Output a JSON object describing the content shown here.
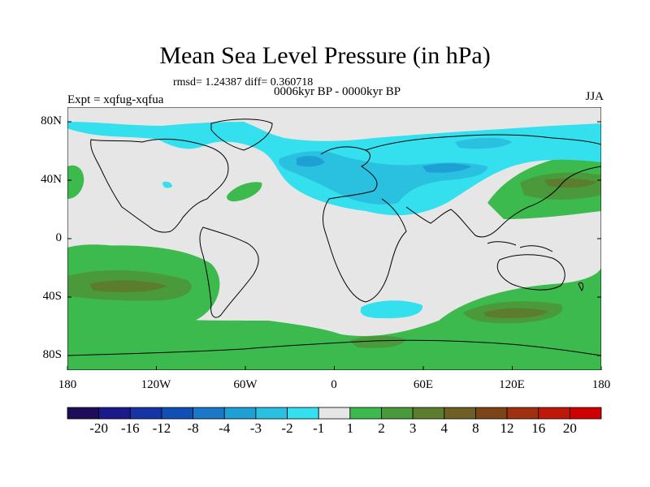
{
  "header": {
    "title": "Mean Sea Level Pressure (in hPa)",
    "stats": "rmsd= 1.24387 diff= 0.360718",
    "period": "0006kyr BP - 0000kyr BP",
    "experiment": "Expt = xqfug-xqfua",
    "season": "JJA"
  },
  "axes": {
    "lat_labels": [
      "80N",
      "40N",
      "0",
      "40S",
      "80S"
    ],
    "lon_labels": [
      "180",
      "120W",
      "60W",
      "0",
      "60E",
      "120E",
      "180"
    ]
  },
  "colorbar": {
    "labels": [
      "-20",
      "-16",
      "-12",
      "-8",
      "-4",
      "-3",
      "-2",
      "-1",
      "1",
      "2",
      "3",
      "4",
      "8",
      "12",
      "16",
      "20"
    ],
    "colors": [
      "#1e0c5a",
      "#1a1a8a",
      "#1535a5",
      "#1050b5",
      "#1a78c8",
      "#1fa0d5",
      "#2ac0e0",
      "#35e0ee",
      "#e6e6e6",
      "#3dba4d",
      "#4a9a3c",
      "#5d7d2e",
      "#6e5f24",
      "#7d4418",
      "#a03010",
      "#c01808",
      "#d00000"
    ]
  },
  "map_colors": {
    "neutral": "#e6e6e6",
    "pos_light": "#3dba4d",
    "pos_mid": "#4a9a3c",
    "pos_dark": "#5d7d2e",
    "neg_light": "#35e0ee",
    "neg_mid": "#2ac0e0",
    "neg_dark": "#1fa0d5"
  }
}
